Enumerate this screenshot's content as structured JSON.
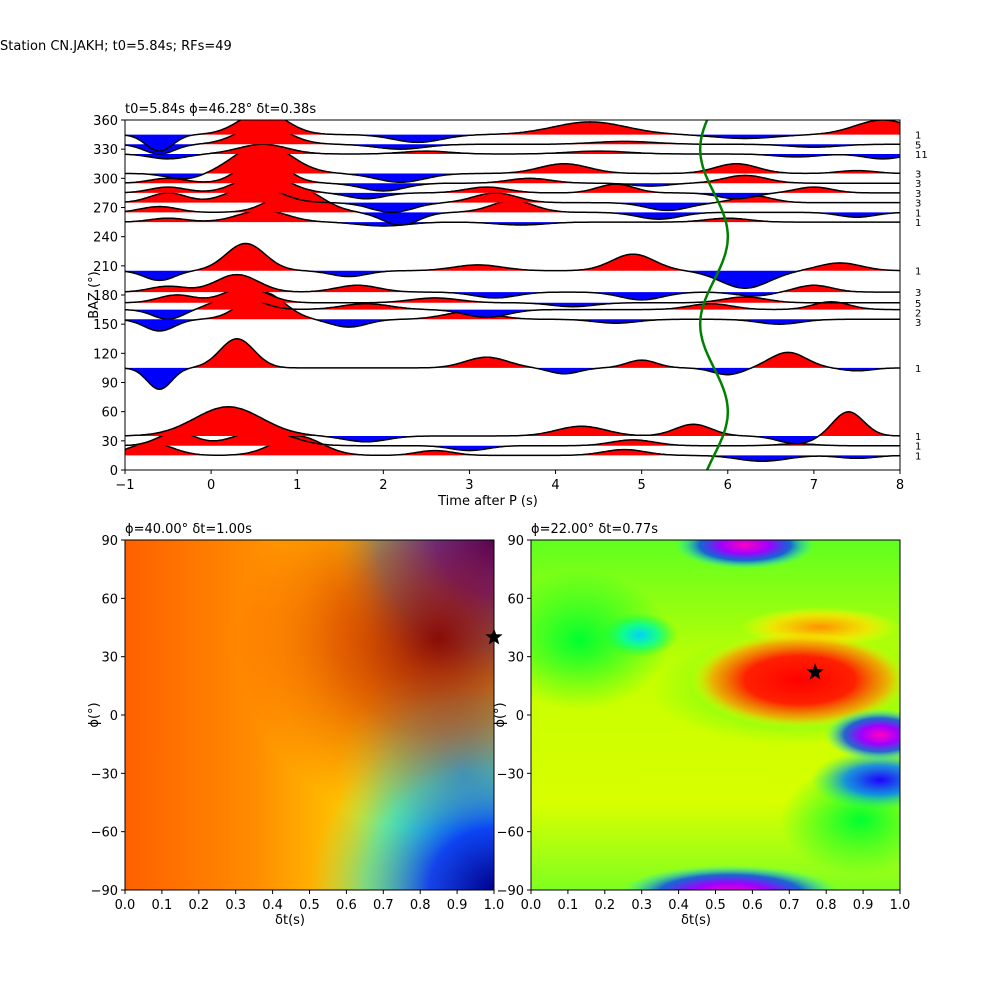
{
  "figure_title": "Station CN.JAKH; t0=5.84s; RFs=49",
  "chart_data": [
    {
      "type": "line",
      "title": "t0=5.84s ϕ=46.28° δt=0.38s",
      "xlabel": "Time after P (s)",
      "ylabel": "BAZ (°)",
      "xlim": [
        -1,
        8
      ],
      "ylim": [
        0,
        360
      ],
      "xticks": [
        "−1",
        "0",
        "1",
        "2",
        "3",
        "4",
        "5",
        "6",
        "7",
        "8"
      ],
      "yticks": [
        "0",
        "30",
        "60",
        "90",
        "120",
        "150",
        "180",
        "210",
        "240",
        "270",
        "300",
        "330",
        "360"
      ],
      "positive_fill_color": "#ff0000",
      "negative_fill_color": "#0000ff",
      "trace_color": "#000000",
      "delay_curve_color": "#008000",
      "delay_curve": {
        "center_time": 5.84,
        "amplitude": 0.16
      },
      "series": [
        {
          "baz": 15,
          "count": "1",
          "components": [
            [
              -0.7,
              1.3,
              0.35
            ],
            [
              1.0,
              2.0,
              0.4
            ],
            [
              2.6,
              0.5,
              0.3
            ],
            [
              4.8,
              0.6,
              0.35
            ],
            [
              6.4,
              -0.6,
              0.4
            ],
            [
              7.5,
              -0.3,
              0.3
            ]
          ]
        },
        {
          "baz": 25,
          "count": "1",
          "components": [
            [
              -0.4,
              1.4,
              0.3
            ],
            [
              0.6,
              1.6,
              0.45
            ],
            [
              3.0,
              -0.5,
              0.3
            ],
            [
              4.9,
              0.6,
              0.35
            ],
            [
              6.8,
              0.2,
              0.3
            ]
          ]
        },
        {
          "baz": 35,
          "count": "1",
          "components": [
            [
              0.2,
              3.0,
              0.55
            ],
            [
              1.8,
              -0.6,
              0.35
            ],
            [
              4.3,
              1.0,
              0.4
            ],
            [
              5.6,
              1.2,
              0.3
            ],
            [
              6.8,
              -0.8,
              0.3
            ],
            [
              7.4,
              2.5,
              0.25
            ]
          ]
        },
        {
          "baz": 105,
          "count": "1",
          "components": [
            [
              -0.6,
              -2.2,
              0.2
            ],
            [
              0.3,
              3.0,
              0.28
            ],
            [
              3.2,
              1.1,
              0.35
            ],
            [
              4.1,
              -0.6,
              0.25
            ],
            [
              5.0,
              0.8,
              0.25
            ],
            [
              6.0,
              -0.7,
              0.25
            ],
            [
              6.7,
              1.6,
              0.3
            ],
            [
              7.5,
              -0.3,
              0.25
            ]
          ]
        },
        {
          "baz": 155,
          "count": "3",
          "components": [
            [
              -0.6,
              -1.2,
              0.25
            ],
            [
              0.6,
              2.8,
              0.35
            ],
            [
              1.6,
              -0.8,
              0.3
            ],
            [
              3.0,
              0.8,
              0.4
            ],
            [
              4.7,
              -0.4,
              0.35
            ],
            [
              6.6,
              -0.5,
              0.35
            ]
          ]
        },
        {
          "baz": 165,
          "count": "2",
          "components": [
            [
              -0.5,
              -1.0,
              0.25
            ],
            [
              0.3,
              1.5,
              0.35
            ],
            [
              1.8,
              0.6,
              0.4
            ],
            [
              3.2,
              -0.8,
              0.35
            ],
            [
              5.8,
              0.6,
              0.35
            ],
            [
              7.2,
              0.8,
              0.3
            ]
          ]
        },
        {
          "baz": 172,
          "count": "5",
          "components": [
            [
              -0.4,
              0.8,
              0.3
            ],
            [
              0.4,
              1.6,
              0.35
            ],
            [
              2.6,
              0.5,
              0.4
            ],
            [
              4.2,
              -0.4,
              0.35
            ],
            [
              6.2,
              0.6,
              0.35
            ]
          ]
        },
        {
          "baz": 183,
          "count": "3",
          "components": [
            [
              -0.5,
              0.6,
              0.3
            ],
            [
              0.3,
              1.8,
              0.35
            ],
            [
              1.7,
              0.7,
              0.35
            ],
            [
              3.3,
              -0.6,
              0.35
            ],
            [
              5.0,
              -0.8,
              0.35
            ],
            [
              6.3,
              -0.4,
              0.3
            ],
            [
              7.0,
              0.7,
              0.3
            ]
          ]
        },
        {
          "baz": 205,
          "count": "1",
          "components": [
            [
              -0.6,
              -1.0,
              0.25
            ],
            [
              0.4,
              2.8,
              0.32
            ],
            [
              1.6,
              -0.6,
              0.3
            ],
            [
              3.1,
              0.6,
              0.4
            ],
            [
              4.9,
              1.7,
              0.35
            ],
            [
              6.2,
              -1.8,
              0.4
            ],
            [
              7.3,
              0.8,
              0.35
            ]
          ]
        },
        {
          "baz": 255,
          "count": "1",
          "components": [
            [
              -0.5,
              0.4,
              0.3
            ],
            [
              0.6,
              1.2,
              0.4
            ],
            [
              2.0,
              -0.4,
              0.4
            ],
            [
              3.6,
              -0.3,
              0.4
            ],
            [
              6.0,
              0.4,
              0.35
            ]
          ]
        },
        {
          "baz": 265,
          "count": "1",
          "components": [
            [
              -0.6,
              0.6,
              0.3
            ],
            [
              1.0,
              2.5,
              0.4
            ],
            [
              2.2,
              -1.3,
              0.3
            ],
            [
              3.5,
              1.2,
              0.35
            ],
            [
              5.2,
              -0.7,
              0.35
            ],
            [
              7.5,
              -0.5,
              0.3
            ]
          ]
        },
        {
          "baz": 275,
          "count": "3",
          "components": [
            [
              -0.5,
              1.0,
              0.3
            ],
            [
              0.5,
              1.8,
              0.4
            ],
            [
              2.1,
              -1.0,
              0.35
            ],
            [
              3.3,
              1.0,
              0.35
            ],
            [
              5.3,
              -0.8,
              0.35
            ],
            [
              6.3,
              0.7,
              0.3
            ]
          ]
        },
        {
          "baz": 285,
          "count": "3",
          "components": [
            [
              -0.5,
              0.6,
              0.3
            ],
            [
              0.6,
              2.0,
              0.4
            ],
            [
              1.8,
              -0.6,
              0.3
            ],
            [
              3.2,
              0.6,
              0.35
            ],
            [
              4.7,
              0.9,
              0.3
            ],
            [
              6.1,
              -0.6,
              0.3
            ],
            [
              7.0,
              0.6,
              0.3
            ]
          ]
        },
        {
          "baz": 295,
          "count": "3",
          "components": [
            [
              -0.5,
              0.5,
              0.3
            ],
            [
              0.6,
              2.8,
              0.35
            ],
            [
              2.0,
              -0.8,
              0.35
            ],
            [
              3.7,
              0.5,
              0.35
            ],
            [
              5.1,
              -0.3,
              0.3
            ],
            [
              6.2,
              0.8,
              0.35
            ]
          ]
        },
        {
          "baz": 305,
          "count": "3",
          "components": [
            [
              -0.3,
              -0.6,
              0.3
            ],
            [
              0.6,
              3.1,
              0.45
            ],
            [
              2.2,
              -0.9,
              0.4
            ],
            [
              4.1,
              1.0,
              0.4
            ],
            [
              6.1,
              1.0,
              0.35
            ],
            [
              7.5,
              0.3,
              0.3
            ]
          ]
        },
        {
          "baz": 325,
          "count": "11",
          "components": [
            [
              -0.5,
              -0.5,
              0.3
            ],
            [
              0.6,
              1.0,
              0.4
            ],
            [
              2.5,
              0.3,
              0.4
            ],
            [
              4.5,
              0.3,
              0.5
            ],
            [
              6.8,
              -0.3,
              0.35
            ],
            [
              7.8,
              -0.5,
              0.3
            ]
          ]
        },
        {
          "baz": 335,
          "count": "5",
          "components": [
            [
              -0.6,
              -1.0,
              0.25
            ],
            [
              0.6,
              2.0,
              0.4
            ],
            [
              2.2,
              -0.5,
              0.4
            ],
            [
              4.8,
              0.3,
              0.5
            ],
            [
              7.0,
              -0.3,
              0.4
            ]
          ]
        },
        {
          "baz": 345,
          "count": "1",
          "components": [
            [
              -0.6,
              -1.7,
              0.22
            ],
            [
              0.6,
              2.4,
              0.38
            ],
            [
              2.4,
              -0.8,
              0.4
            ],
            [
              4.4,
              1.3,
              0.6
            ],
            [
              6.2,
              -0.4,
              0.5
            ],
            [
              7.8,
              1.5,
              0.45
            ]
          ]
        }
      ]
    },
    {
      "type": "heatmap",
      "title": "ϕ=40.00° δt=1.00s",
      "xlabel": "δt(s)",
      "ylabel": "ϕ(°)",
      "xlim": [
        0,
        1
      ],
      "ylim": [
        -90,
        90
      ],
      "xticks": [
        "0.0",
        "0.1",
        "0.2",
        "0.3",
        "0.4",
        "0.5",
        "0.6",
        "0.7",
        "0.8",
        "0.9",
        "1.0"
      ],
      "yticks": [
        "−90",
        "−60",
        "−30",
        "0",
        "30",
        "60",
        "90"
      ],
      "colormap": "jet",
      "best_fit": {
        "dt": 1.0,
        "phi": 40.0
      },
      "marker": "star"
    },
    {
      "type": "heatmap",
      "title": "ϕ=22.00° δt=0.77s",
      "xlabel": "δt(s)",
      "ylabel": "ϕ(°)",
      "xlim": [
        0,
        1
      ],
      "ylim": [
        -90,
        90
      ],
      "xticks": [
        "0.0",
        "0.1",
        "0.2",
        "0.3",
        "0.4",
        "0.5",
        "0.6",
        "0.7",
        "0.8",
        "0.9",
        "1.0"
      ],
      "yticks": [
        "−90",
        "−60",
        "−30",
        "0",
        "30",
        "60",
        "90"
      ],
      "colormap": "gist_rainbow",
      "best_fit": {
        "dt": 0.77,
        "phi": 22.0
      },
      "marker": "star"
    }
  ]
}
